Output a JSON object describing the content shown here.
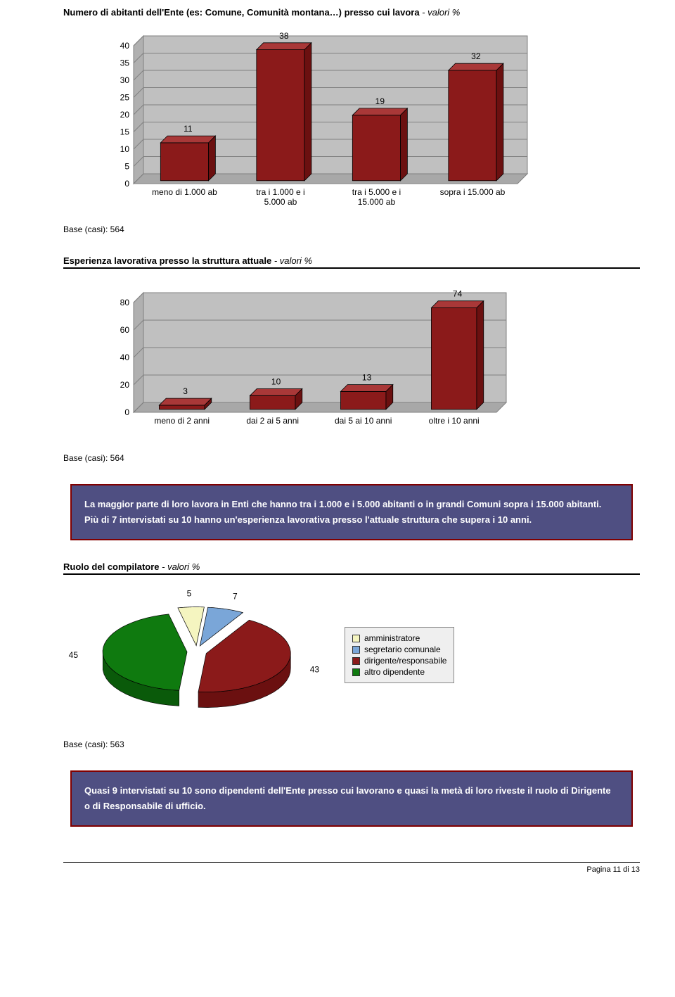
{
  "chart1": {
    "title_prefix": "Numero di abitanti dell'Ente (es: Comune, Comunità montana…) presso cui lavora",
    "title_suffix": " - valori %",
    "type": "bar",
    "categories": [
      "meno di 1.000 ab",
      "tra i 1.000 e i\n5.000 ab",
      "tra i 5.000 e i\n15.000 ab",
      "sopra i 15.000 ab"
    ],
    "values": [
      11,
      38,
      19,
      32
    ],
    "ylim": [
      0,
      40
    ],
    "ytick_step": 5,
    "bar_color": "#8b1a1a",
    "bar_top_color": "#a93838",
    "bar_side_color": "#6b1010",
    "background_color": "#c0c0c0",
    "grid_color": "#808080",
    "label_fontsize": 12,
    "axis_fontsize": 12,
    "base_label": "Base (casi): 564"
  },
  "chart2": {
    "title_prefix": "Esperienza lavorativa presso la struttura attuale",
    "title_suffix": " - valori %",
    "type": "bar",
    "categories": [
      "meno di 2 anni",
      "dai 2 ai 5 anni",
      "dai 5 ai 10 anni",
      "oltre i 10 anni"
    ],
    "values": [
      3,
      10,
      13,
      74
    ],
    "ylim": [
      0,
      80
    ],
    "ytick_step": 20,
    "bar_color": "#8b1a1a",
    "bar_top_color": "#a93838",
    "bar_side_color": "#6b1010",
    "background_color": "#c0c0c0",
    "grid_color": "#808080",
    "label_fontsize": 12,
    "axis_fontsize": 12,
    "base_label": "Base (casi): 564"
  },
  "info1": {
    "text": "La maggior parte di loro lavora in Enti che hanno tra i 1.000 e i 5.000 abitanti o in grandi Comuni sopra i 15.000 abitanti.\nPiù di 7 intervistati su 10 hanno un'esperienza lavorativa presso l'attuale struttura che supera i 10 anni."
  },
  "chart3": {
    "title_prefix": "Ruolo del compilatore",
    "title_suffix": " - valori %",
    "type": "pie",
    "slices": [
      {
        "label": "amministratore",
        "value": 5,
        "color": "#f5f5c0",
        "side": "#d0d090"
      },
      {
        "label": "segretario comunale",
        "value": 7,
        "color": "#7aa6d8",
        "side": "#5480b0"
      },
      {
        "label": "dirigente/responsabile",
        "value": 43,
        "color": "#8b1a1a",
        "side": "#6b1010"
      },
      {
        "label": "altro dipendente",
        "value": 45,
        "color": "#0f7a0f",
        "side": "#0a5a0a"
      }
    ],
    "label_fontsize": 12,
    "legend_labels": [
      "amministratore",
      "segretario comunale",
      "dirigente/responsabile",
      "altro dipendente"
    ],
    "base_label": "Base (casi): 563"
  },
  "info2": {
    "text": "Quasi 9 intervistati su 10 sono dipendenti dell'Ente presso cui lavorano e quasi la metà di loro riveste il ruolo di Dirigente o di Responsabile di ufficio."
  },
  "footer": {
    "text": "Pagina 11 di 13"
  }
}
